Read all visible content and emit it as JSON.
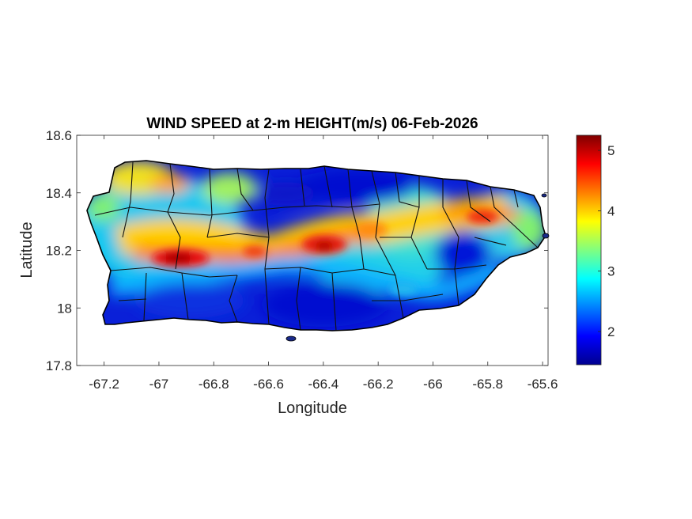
{
  "chart_data": {
    "type": "heatmap",
    "title": "WIND SPEED at 2-m HEIGHT(m/s) 06-Feb-2026",
    "xlabel": "Longitude",
    "ylabel": "Latitude",
    "xlim": [
      -67.3,
      -65.58
    ],
    "ylim": [
      17.8,
      18.6
    ],
    "xticks": [
      -67.2,
      -67,
      -66.8,
      -66.6,
      -66.4,
      -66.2,
      -66,
      -65.8,
      -65.6
    ],
    "xtick_labels": [
      "-67.2",
      "-67",
      "-66.8",
      "-66.6",
      "-66.4",
      "-66.2",
      "-66",
      "-65.8",
      "-65.6"
    ],
    "yticks": [
      17.8,
      18,
      18.2,
      18.4,
      18.6
    ],
    "ytick_labels": [
      "17.8",
      "18",
      "18.2",
      "18.4",
      "18.6"
    ],
    "colorbar": {
      "colormap": "jet",
      "range": [
        1.45,
        5.25
      ],
      "ticks": [
        2,
        3,
        4,
        5
      ],
      "tick_labels": [
        "2",
        "3",
        "4",
        "5"
      ]
    },
    "grid": false,
    "legend": "none",
    "hotspots": [
      {
        "lon": -66.93,
        "lat": 18.17,
        "value": 5.1
      },
      {
        "lon": -66.42,
        "lat": 18.22,
        "value": 4.9
      },
      {
        "lon": -66.67,
        "lat": 18.19,
        "value": 4.6
      },
      {
        "lon": -65.82,
        "lat": 18.31,
        "value": 4.8
      },
      {
        "lon": -67.05,
        "lat": 18.45,
        "value": 4.1
      }
    ],
    "low_wind_regions": [
      {
        "lon": -66.45,
        "lat": 18.42,
        "value": 1.6
      },
      {
        "lon": -66.4,
        "lat": 18.0,
        "value": 1.6
      },
      {
        "lon": -65.95,
        "lat": 18.25,
        "value": 1.7
      },
      {
        "lon": -66.9,
        "lat": 17.98,
        "value": 1.9
      }
    ]
  }
}
